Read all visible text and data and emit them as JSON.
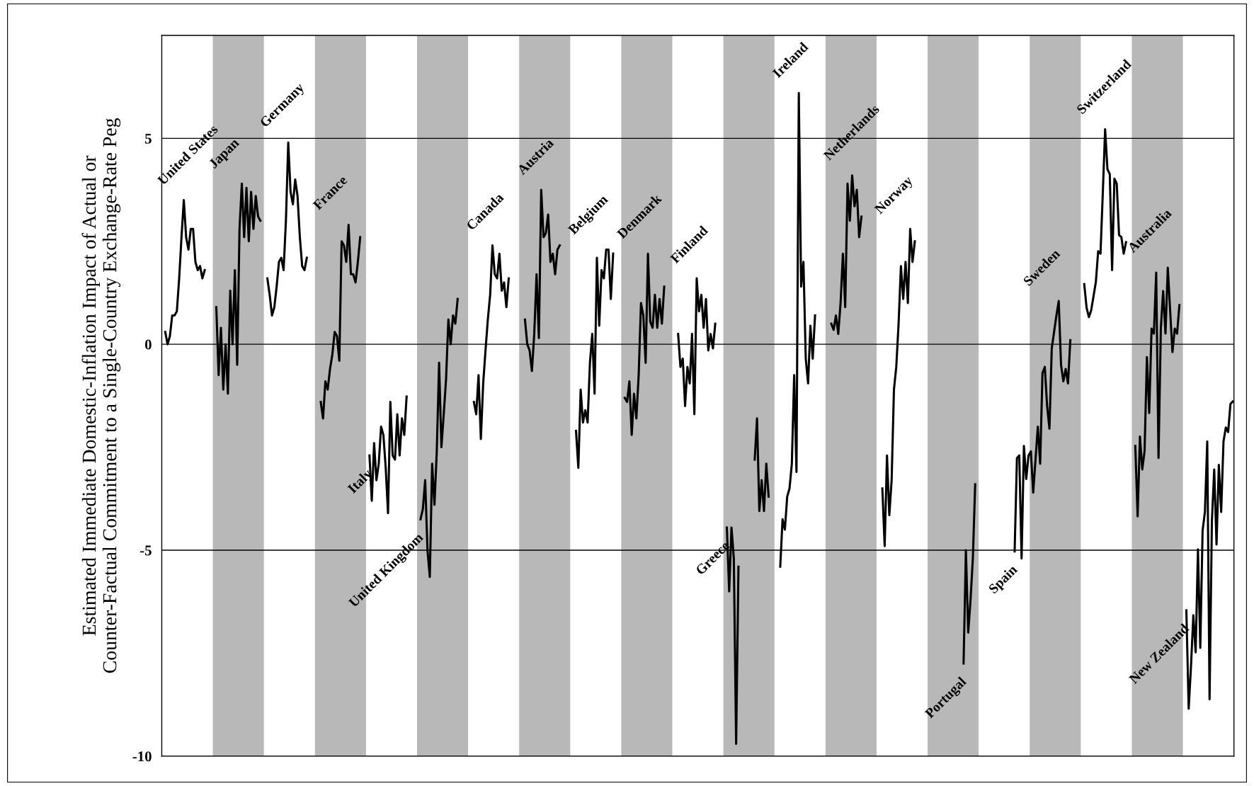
{
  "chart_data": {
    "type": "line",
    "ylabel": "Estimated Immediate Domestic-Inflation Impact of Actual or\nCounter-Factual Commitment to a Single-Country Exchange-Rate Peg",
    "ylim": [
      -10,
      7.5
    ],
    "yticks": [
      {
        "value": -10,
        "label": "-10"
      },
      {
        "value": -5,
        "label": "-5"
      },
      {
        "value": 0,
        "label": "0"
      },
      {
        "value": 5,
        "label": "5"
      }
    ],
    "grid": "y",
    "tick_labels": "y",
    "line_style": "solid",
    "marker": "none",
    "categories": [
      null,
      null,
      null,
      null,
      null,
      null,
      null,
      null,
      null,
      null,
      null,
      null,
      null,
      null,
      null,
      null,
      null,
      null,
      null,
      null,
      null,
      null,
      null,
      null,
      null,
      null,
      null,
      null,
      null,
      null,
      null,
      null,
      null,
      null,
      null,
      null,
      null,
      null,
      null,
      null,
      null,
      null,
      null,
      null,
      null,
      null,
      null,
      null,
      null,
      null,
      null,
      null,
      null,
      null,
      null,
      null,
      null,
      null,
      null,
      null,
      null,
      null,
      null,
      null,
      null,
      null,
      null,
      null,
      null,
      null,
      null,
      null,
      null,
      null,
      null,
      null,
      null,
      null,
      null,
      null,
      null,
      null,
      null,
      null,
      null,
      null,
      null,
      null,
      null,
      null,
      null,
      null,
      null,
      null,
      null,
      null,
      null,
      null,
      null,
      null,
      null,
      null,
      null,
      null,
      null,
      null,
      null,
      null,
      null,
      null,
      null,
      null,
      null,
      null,
      null,
      null,
      null,
      null,
      null,
      null,
      null,
      null,
      null,
      null,
      null,
      null,
      null,
      null,
      null,
      null,
      null,
      null,
      null,
      null,
      null,
      null,
      null,
      null,
      null,
      null,
      null,
      null,
      null,
      null,
      null,
      null,
      null,
      null,
      null,
      null,
      null,
      null,
      null,
      null,
      null,
      null,
      null,
      null,
      null,
      null,
      null,
      null,
      null,
      null,
      null,
      null,
      null,
      null,
      null,
      null,
      null,
      null,
      null,
      null,
      null,
      null,
      null,
      null,
      null,
      null,
      null,
      null,
      null,
      null,
      null,
      null,
      null,
      null,
      null,
      null,
      null,
      null,
      null,
      null,
      null,
      null,
      null,
      null,
      null,
      null,
      null,
      null,
      null,
      null,
      null,
      null,
      null,
      null,
      null,
      null,
      null,
      null,
      null,
      null,
      null,
      null,
      null,
      null,
      null,
      null,
      null,
      null,
      null,
      null,
      null,
      null,
      null,
      null,
      null,
      null,
      null,
      null,
      null,
      null,
      null,
      null,
      null,
      null,
      null,
      null,
      null,
      null,
      null,
      null,
      null,
      null,
      null,
      null,
      null,
      null,
      null,
      null,
      null,
      null,
      null,
      null,
      null,
      null,
      null,
      null,
      null,
      null,
      null,
      null,
      null,
      null,
      null,
      null,
      null,
      null,
      null,
      null,
      null,
      null,
      null,
      null,
      null,
      null,
      null,
      null,
      null,
      null,
      null,
      null,
      null,
      null,
      null,
      null,
      null,
      null,
      null,
      null,
      null,
      null,
      null,
      null,
      null,
      null,
      null,
      null,
      null,
      null,
      null,
      null,
      null,
      null,
      null,
      null,
      null,
      null,
      null,
      null,
      null,
      null,
      null,
      null,
      null,
      null,
      null,
      null,
      null,
      null,
      null,
      null,
      null,
      null,
      null,
      null,
      null,
      null,
      null,
      null,
      null,
      null,
      null,
      null,
      null,
      null,
      null,
      null,
      null,
      null,
      null,
      null,
      null,
      null,
      null,
      null,
      null,
      null,
      null,
      null,
      null,
      null,
      null,
      null,
      null,
      null,
      null,
      null,
      null,
      null,
      null,
      null,
      null,
      null,
      null,
      null,
      null,
      null,
      null,
      null,
      null,
      null,
      null,
      null,
      null,
      null,
      null,
      null,
      null,
      null,
      null,
      null,
      null,
      null,
      null,
      null,
      null,
      null,
      null,
      null,
      null,
      null,
      null,
      null,
      null,
      null,
      null,
      null,
      null,
      null,
      null,
      null,
      null,
      null,
      null,
      null,
      null,
      null,
      null,
      null,
      null,
      null,
      null,
      null,
      null,
      null,
      null,
      null,
      null,
      null,
      null,
      null,
      null,
      null,
      null,
      null,
      null,
      null,
      null,
      null,
      null,
      null,
      null,
      null,
      null,
      null,
      null,
      null,
      null,
      null,
      null,
      null,
      null,
      null,
      null,
      null,
      null,
      null,
      null,
      null,
      null,
      null,
      null,
      null,
      null,
      null,
      null,
      null,
      null,
      null
    ],
    "series": [
      {
        "color": "#000000",
        "values": [
          null,
          0.3,
          0.0,
          0.2,
          0.7,
          0.7,
          0.8,
          1.6,
          2.6,
          3.5,
          2.6,
          2.3,
          2.8,
          2.8,
          2.0,
          1.8,
          1.9,
          1.6,
          1.8,
          null,
          null,
          null,
          null,
          0.9,
          -0.75,
          0.4,
          -1.1,
          0.0,
          -1.2,
          1.3,
          0.0,
          1.8,
          -0.5,
          2.8,
          3.9,
          2.6,
          3.8,
          2.5,
          3.7,
          2.8,
          3.6,
          3.1,
          3.0,
          null,
          null,
          1.6,
          1.2,
          0.7,
          0.9,
          1.4,
          2.0,
          2.1,
          1.8,
          3.0,
          4.9,
          3.7,
          3.4,
          4.0,
          3.6,
          2.6,
          1.9,
          1.8,
          2.1,
          null,
          null,
          null,
          null,
          null,
          -1.4,
          -1.8,
          -0.9,
          -1.1,
          -0.6,
          -0.25,
          0.3,
          0.2,
          -0.4,
          2.5,
          2.4,
          2.0,
          2.9,
          1.7,
          1.7,
          1.5,
          2.0,
          2.6,
          null,
          null,
          null,
          -2.7,
          -3.8,
          -2.4,
          -3.3,
          -2.9,
          -2.0,
          -2.2,
          -3.0,
          -4.1,
          -1.4,
          -2.7,
          -2.8,
          -1.7,
          -2.7,
          -1.8,
          -2.2,
          -1.27,
          null,
          null,
          null,
          null,
          null,
          -4.25,
          -4.0,
          -3.3,
          -5.0,
          -5.65,
          -2.9,
          -3.9,
          -2.6,
          -0.45,
          -2.5,
          -1.7,
          -0.85,
          0.6,
          0.0,
          0.7,
          0.5,
          1.1,
          null,
          null,
          null,
          null,
          null,
          null,
          -1.4,
          -1.7,
          -0.75,
          -2.3,
          -0.95,
          -0.15,
          0.6,
          1.2,
          2.4,
          1.7,
          1.6,
          2.2,
          1.3,
          1.5,
          0.9,
          1.6,
          null,
          null,
          null,
          null,
          null,
          null,
          0.6,
          0.0,
          -0.15,
          -0.65,
          0.25,
          1.7,
          0.15,
          3.75,
          2.6,
          2.7,
          3.15,
          2.0,
          2.2,
          1.7,
          2.3,
          2.4,
          null,
          null,
          null,
          null,
          null,
          null,
          -2.1,
          -3.0,
          -1.1,
          -1.9,
          -1.6,
          -1.9,
          -0.45,
          0.25,
          -1.2,
          2.1,
          0.45,
          1.8,
          1.6,
          2.3,
          2.3,
          1.1,
          2.2,
          null,
          null,
          null,
          null,
          -1.3,
          -1.4,
          -0.9,
          -2.2,
          -1.2,
          -1.8,
          -0.75,
          1.0,
          0.7,
          -0.45,
          2.2,
          0.55,
          0.4,
          1.2,
          0.4,
          1.1,
          0.5,
          1.4,
          null,
          null,
          null,
          null,
          null,
          0.25,
          -0.55,
          -0.35,
          -1.5,
          -0.55,
          -0.95,
          0.25,
          -1.7,
          1.6,
          0.8,
          1.2,
          0.4,
          1.1,
          -0.15,
          0.25,
          -0.1,
          0.5,
          null,
          null,
          null,
          null,
          -4.45,
          -6.0,
          -4.45,
          -5.2,
          -9.7,
          -5.4,
          null,
          null,
          null,
          null,
          null,
          null,
          -2.8,
          -1.8,
          -4.05,
          -3.3,
          -4.05,
          -2.9,
          -3.7,
          null,
          null,
          null,
          null,
          -5.4,
          -4.25,
          -4.5,
          -3.7,
          -3.5,
          -2.9,
          -0.75,
          -3.1,
          6.1,
          1.4,
          2.0,
          -0.35,
          -0.95,
          0.45,
          -0.35,
          0.7,
          null,
          null,
          null,
          null,
          null,
          null,
          0.5,
          0.35,
          0.7,
          0.25,
          1.0,
          2.2,
          0.9,
          3.9,
          3.0,
          4.1,
          3.35,
          3.75,
          2.6,
          3.1,
          null,
          null,
          null,
          null,
          null,
          null,
          null,
          null,
          -3.5,
          -4.9,
          -2.7,
          -4.15,
          -3.3,
          -1.1,
          -0.55,
          0.5,
          1.9,
          1.1,
          2.0,
          1.0,
          2.8,
          2.0,
          2.5,
          null,
          null,
          null,
          null,
          null,
          null,
          null,
          null,
          null,
          null,
          null,
          null,
          null,
          null,
          null,
          null,
          null,
          null,
          null,
          null,
          -7.75,
          -5.0,
          -7.0,
          -6.2,
          -5.2,
          -3.4,
          null,
          null,
          null,
          null,
          null,
          null,
          null,
          null,
          null,
          null,
          null,
          null,
          null,
          null,
          null,
          null,
          -5.03,
          -2.76,
          -2.7,
          -5.2,
          -2.47,
          -3.27,
          -2.7,
          -2.6,
          -3.6,
          -2.8,
          -2.0,
          -2.9,
          -0.7,
          -0.55,
          -1.5,
          -2.05,
          -0.1,
          0.3,
          0.7,
          1.05,
          -0.5,
          -0.9,
          -0.6,
          -0.95,
          0.1,
          null,
          null,
          null,
          null,
          null,
          1.46,
          0.89,
          0.66,
          0.83,
          1.17,
          1.51,
          2.26,
          2.2,
          3.68,
          5.22,
          4.25,
          4.13,
          1.8,
          4.02,
          3.9,
          2.65,
          2.6,
          2.2,
          2.48,
          null,
          null,
          null,
          -2.47,
          -4.18,
          -2.24,
          -3.04,
          -2.59,
          -0.31,
          -1.67,
          0.38,
          0.26,
          1.74,
          -2.76,
          0.38,
          1.29,
          0.26,
          1.86,
          0.83,
          -0.19,
          0.38,
          0.26,
          0.95,
          null,
          null,
          -6.46,
          -8.85,
          -7.82,
          -6.58,
          -7.48,
          -4.98,
          -7.37,
          -4.52,
          -4.07,
          -2.36,
          -8.62,
          -4.3,
          -3.04,
          -4.86,
          -2.93,
          -4.07,
          -2.36,
          -2.02,
          -2.13,
          -1.45,
          -1.39
        ]
      }
    ],
    "annotations": [
      "United States",
      "Japan",
      "Germany",
      "France",
      "Italy",
      "United Kingdom",
      "Canada",
      "Austria",
      "Belgium",
      "Denmark",
      "Finland",
      "Greece",
      "Ireland",
      "Netherlands",
      "Norway",
      "Portugal",
      "Spain",
      "Sweden",
      "Switzerland",
      "Australia",
      "New Zealand"
    ]
  }
}
